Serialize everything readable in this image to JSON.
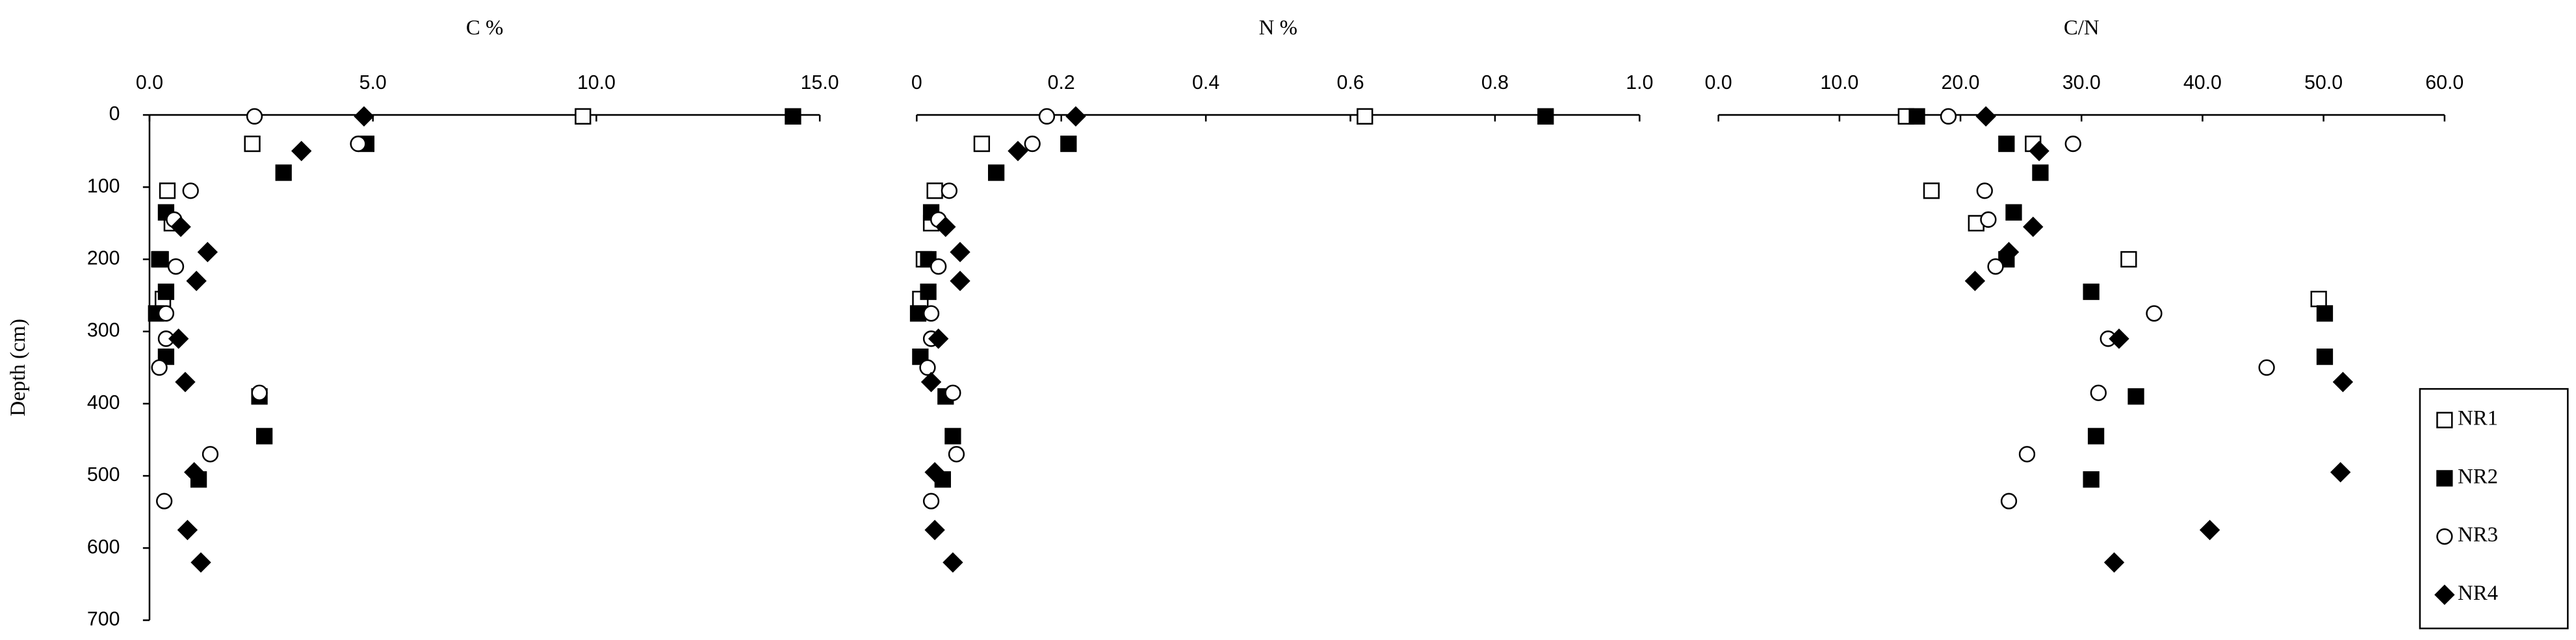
{
  "chart_data": [
    {
      "type": "scatter",
      "title": "C %",
      "xlim": [
        0,
        15
      ],
      "xticks": [
        {
          "value": 0,
          "label": "0.0"
        },
        {
          "value": 5,
          "label": "5.0"
        },
        {
          "value": 10,
          "label": "10.0"
        },
        {
          "value": 15,
          "label": "15.0"
        }
      ],
      "ylabel": "Depth (cm)",
      "ylim": [
        0,
        700
      ],
      "y_reversed": true,
      "yticks": [
        0,
        100,
        200,
        300,
        400,
        500,
        600,
        700
      ],
      "series": [
        {
          "name": "NR1",
          "marker": "square-open",
          "color": "#000000",
          "x": [
            9.7,
            2.3,
            0.4,
            0.5,
            0.25,
            0.3
          ],
          "values": [
            2,
            40,
            105,
            150,
            200,
            255
          ]
        },
        {
          "name": "NR2",
          "marker": "square-filled",
          "color": "#000000",
          "x": [
            14.4,
            4.85,
            3.0,
            0.37,
            0.22,
            0.37,
            0.15,
            0.37,
            2.46,
            2.57,
            1.1
          ],
          "values": [
            2,
            40,
            80,
            135,
            200,
            245,
            275,
            335,
            390,
            445,
            505
          ]
        },
        {
          "name": "NR3",
          "marker": "circle-open",
          "color": "#000000",
          "x": [
            2.35,
            4.67,
            0.92,
            0.55,
            0.59,
            0.37,
            0.37,
            0.22,
            2.46,
            1.36,
            0.33
          ],
          "values": [
            2,
            40,
            105,
            145,
            210,
            275,
            310,
            350,
            385,
            470,
            535
          ]
        },
        {
          "name": "NR4",
          "marker": "diamond-filled",
          "color": "#000000",
          "x": [
            4.8,
            3.4,
            0.7,
            1.3,
            1.05,
            0.65,
            0.8,
            1.0,
            0.85,
            1.15
          ],
          "values": [
            2,
            50,
            155,
            190,
            230,
            310,
            370,
            495,
            575,
            620
          ]
        }
      ]
    },
    {
      "type": "scatter",
      "title": "N %",
      "xlim": [
        0,
        1
      ],
      "xticks": [
        0,
        0.2,
        0.4,
        0.6,
        0.8,
        {
          "value": 1,
          "label": "1.0"
        }
      ],
      "ylim": [
        0,
        700
      ],
      "y_reversed": true,
      "series": [
        {
          "name": "NR1",
          "marker": "square-open",
          "color": "#000000",
          "x": [
            0.62,
            0.09,
            0.025,
            0.02,
            0.01,
            0.005
          ],
          "values": [
            2,
            40,
            105,
            150,
            200,
            255
          ]
        },
        {
          "name": "NR2",
          "marker": "square-filled",
          "color": "#000000",
          "x": [
            0.87,
            0.21,
            0.11,
            0.02,
            0.016,
            0.016,
            0.002,
            0.005,
            0.04,
            0.05,
            0.036
          ],
          "values": [
            2,
            40,
            80,
            135,
            200,
            245,
            275,
            335,
            390,
            445,
            505
          ]
        },
        {
          "name": "NR3",
          "marker": "circle-open",
          "color": "#000000",
          "x": [
            0.18,
            0.16,
            0.045,
            0.03,
            0.03,
            0.02,
            0.02,
            0.015,
            0.05,
            0.055,
            0.02
          ],
          "values": [
            2,
            40,
            105,
            145,
            210,
            275,
            310,
            350,
            385,
            470,
            535
          ]
        },
        {
          "name": "NR4",
          "marker": "diamond-filled",
          "color": "#000000",
          "x": [
            0.22,
            0.14,
            0.04,
            0.06,
            0.06,
            0.03,
            0.02,
            0.025,
            0.025,
            0.05
          ],
          "values": [
            2,
            50,
            155,
            190,
            230,
            310,
            370,
            495,
            575,
            620
          ]
        }
      ]
    },
    {
      "type": "scatter",
      "title": "C/N",
      "xlim": [
        0,
        60
      ],
      "xticks": [
        {
          "value": 0,
          "label": "0.0"
        },
        {
          "value": 10,
          "label": "10.0"
        },
        {
          "value": 20,
          "label": "20.0"
        },
        {
          "value": 30,
          "label": "30.0"
        },
        {
          "value": 40,
          "label": "40.0"
        },
        {
          "value": 50,
          "label": "50.0"
        },
        {
          "value": 60,
          "label": "60.0"
        }
      ],
      "ylim": [
        0,
        700
      ],
      "y_reversed": true,
      "legend": "right",
      "series": [
        {
          "name": "NR1",
          "marker": "square-open",
          "color": "#000000",
          "x": [
            15.5,
            26.0,
            17.6,
            21.3,
            33.9,
            49.6
          ],
          "values": [
            2,
            40,
            105,
            150,
            200,
            255
          ]
        },
        {
          "name": "NR2",
          "marker": "square-filled",
          "color": "#000000",
          "x": [
            16.4,
            23.8,
            26.6,
            24.4,
            23.8,
            30.8,
            50.1,
            50.1,
            34.5,
            31.2,
            30.8
          ],
          "values": [
            2,
            40,
            80,
            135,
            200,
            245,
            275,
            335,
            390,
            445,
            505
          ]
        },
        {
          "name": "NR3",
          "marker": "circle-open",
          "color": "#000000",
          "x": [
            19.0,
            29.3,
            22.0,
            22.3,
            22.9,
            36.0,
            32.2,
            45.3,
            31.4,
            25.5,
            24.0
          ],
          "values": [
            2,
            40,
            105,
            145,
            210,
            275,
            310,
            350,
            385,
            470,
            535
          ]
        },
        {
          "name": "NR4",
          "marker": "diamond-filled",
          "color": "#000000",
          "x": [
            22.1,
            26.5,
            26.0,
            24.0,
            21.2,
            33.1,
            51.6,
            51.4,
            40.6,
            32.7
          ],
          "values": [
            2,
            50,
            155,
            190,
            230,
            310,
            370,
            495,
            575,
            620
          ]
        }
      ]
    }
  ]
}
